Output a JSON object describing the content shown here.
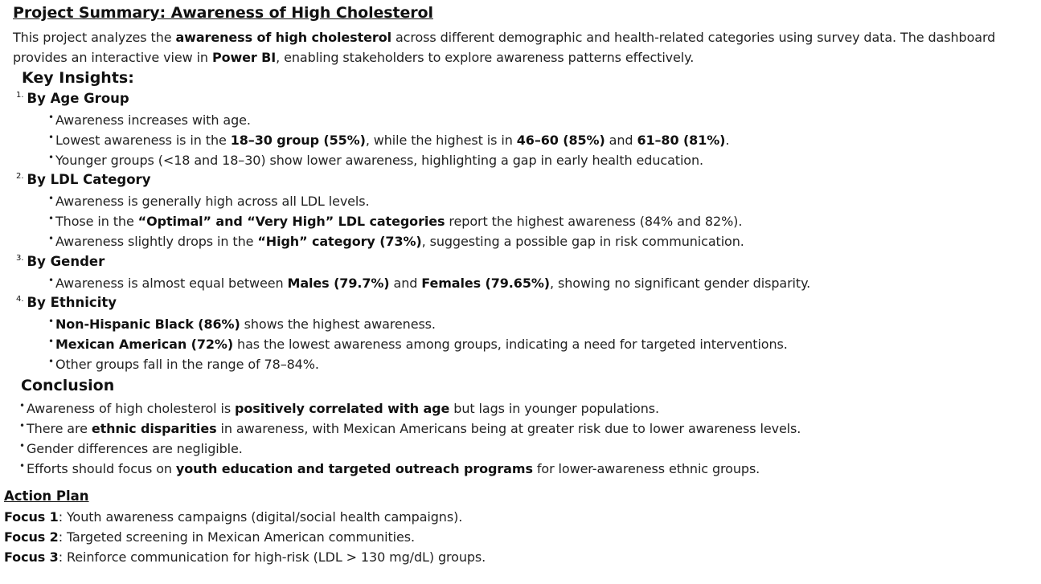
{
  "title": "Project Summary: Awareness of High Cholesterol",
  "intro": {
    "p1": "This project analyzes the ",
    "b1": "awareness of high cholesterol",
    "p2": " across different demographic and health-related categories using survey data. The dashboard provides an interactive view in ",
    "b2": "Power BI",
    "p3": ", enabling stakeholders to explore awareness patterns effectively."
  },
  "key_insights_heading": "Key Insights:",
  "sections": [
    {
      "num": "1.",
      "heading": "By Age Group",
      "bullets": [
        {
          "p1": "Awareness increases with age."
        },
        {
          "p1": "Lowest awareness is in the ",
          "b1": "18–30 group (55%)",
          "p2": ", while the highest is in ",
          "b2": "46–60 (85%)",
          "p3": " and ",
          "b3": "61–80 (81%)",
          "p4": "."
        },
        {
          "p1": "Younger groups (<18 and 18–30) show lower awareness, highlighting a gap in early health education."
        }
      ]
    },
    {
      "num": "2.",
      "heading": "By LDL Category",
      "bullets": [
        {
          "p1": "Awareness is generally high across all LDL levels."
        },
        {
          "p1": "Those in the ",
          "b1": "“Optimal” and “Very High” LDL categories",
          "p2": " report the highest awareness (84% and 82%)."
        },
        {
          "p1": "Awareness slightly drops in the ",
          "b1": "“High” category (73%)",
          "p2": ", suggesting a possible gap in risk communication."
        }
      ]
    },
    {
      "num": "3.",
      "heading": "By Gender",
      "bullets": [
        {
          "p1": "Awareness is almost equal between ",
          "b1": "Males (79.7%)",
          "p2": " and ",
          "b2": "Females (79.65%)",
          "p3": ", showing no significant gender disparity."
        }
      ]
    },
    {
      "num": "4.",
      "heading": "By Ethnicity",
      "bullets": [
        {
          "b1": "Non-Hispanic Black (86%)",
          "p1": " shows the highest awareness."
        },
        {
          "b1": "Mexican American (72%)",
          "p1": " has the lowest awareness among groups, indicating a need for targeted interventions."
        },
        {
          "p1": "Other groups fall in the range of 78–84%."
        }
      ]
    }
  ],
  "conclusion": {
    "heading": "Conclusion",
    "bullets": [
      {
        "p1": "Awareness of high cholesterol is ",
        "b1": "positively correlated with age",
        "p2": " but lags in younger populations."
      },
      {
        "p1": "There are ",
        "b1": "ethnic disparities",
        "p2": " in awareness, with Mexican Americans being at greater risk due to lower awareness levels."
      },
      {
        "p1": "Gender differences are negligible."
      },
      {
        "p1": "Efforts should focus on ",
        "b1": "youth education and targeted outreach programs",
        "p2": " for lower-awareness ethnic groups."
      }
    ]
  },
  "action_plan": {
    "heading": "Action Plan",
    "items": [
      {
        "label": "Focus 1",
        "text": ": Youth awareness campaigns (digital/social health campaigns)."
      },
      {
        "label": "Focus 2",
        "text": ": Targeted screening in Mexican American communities."
      },
      {
        "label": "Focus 3",
        "text": ": Reinforce communication for high-risk (LDL > 130 mg/dL) groups."
      }
    ]
  },
  "bullet_glyph": "•"
}
